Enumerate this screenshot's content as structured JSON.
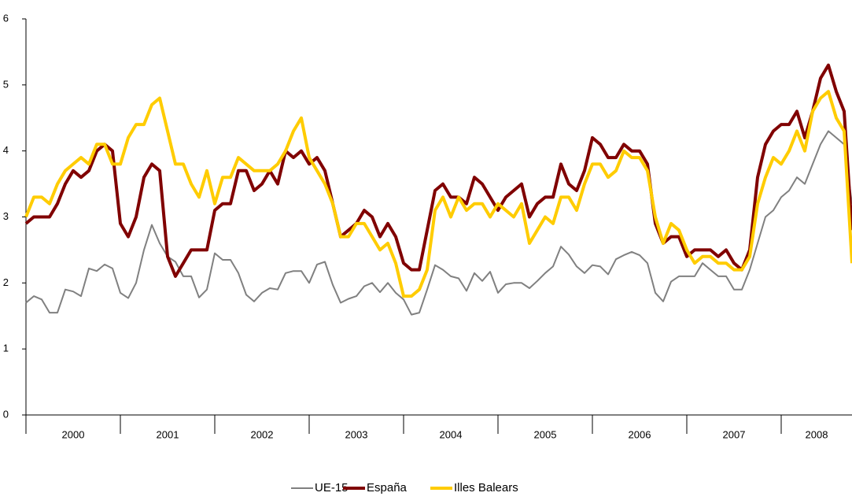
{
  "chart_data": {
    "type": "line",
    "years": [
      "2000",
      "2001",
      "2002",
      "2003",
      "2004",
      "2005",
      "2006",
      "2007",
      "2008"
    ],
    "ylim": [
      0,
      6
    ],
    "yticks": [
      0,
      1,
      2,
      3,
      4,
      5,
      6
    ],
    "series": [
      {
        "name": "UE-15",
        "color": "#808080",
        "values": [
          1.7,
          1.8,
          1.75,
          1.55,
          1.55,
          1.9,
          1.87,
          1.8,
          2.22,
          2.18,
          2.28,
          2.22,
          1.85,
          1.77,
          2.0,
          2.5,
          2.88,
          2.6,
          2.4,
          2.32,
          2.1,
          2.1,
          1.78,
          1.9,
          2.45,
          2.35,
          2.35,
          2.15,
          1.82,
          1.72,
          1.85,
          1.92,
          1.9,
          2.15,
          2.18,
          2.18,
          2.0,
          2.28,
          2.32,
          1.97,
          1.7,
          1.76,
          1.8,
          1.95,
          2.0,
          1.86,
          2.0,
          1.85,
          1.75,
          1.52,
          1.55,
          1.9,
          2.27,
          2.2,
          2.1,
          2.07,
          1.88,
          2.15,
          2.03,
          2.17,
          1.85,
          1.98,
          2.0,
          2.0,
          1.92,
          2.03,
          2.15,
          2.25,
          2.55,
          2.43,
          2.25,
          2.15,
          2.27,
          2.25,
          2.13,
          2.36,
          2.42,
          2.47,
          2.42,
          2.3,
          1.85,
          1.72,
          2.02,
          2.1,
          2.1,
          2.1,
          2.3,
          2.2,
          2.1,
          2.1,
          1.9,
          1.9,
          2.2,
          2.6,
          3.0,
          3.1,
          3.3,
          3.4,
          3.6,
          3.5,
          3.8,
          4.1,
          4.3,
          4.2,
          4.1,
          3.2
        ]
      },
      {
        "name": "España",
        "color": "#800000",
        "values": [
          2.9,
          3.0,
          3.0,
          3.0,
          3.2,
          3.5,
          3.7,
          3.6,
          3.7,
          4.0,
          4.1,
          4.0,
          2.9,
          2.7,
          3.0,
          3.6,
          3.8,
          3.7,
          2.4,
          2.1,
          2.3,
          2.5,
          2.5,
          2.5,
          3.1,
          3.2,
          3.2,
          3.7,
          3.7,
          3.4,
          3.5,
          3.7,
          3.5,
          4.0,
          3.9,
          4.0,
          3.8,
          3.9,
          3.7,
          3.2,
          2.7,
          2.8,
          2.9,
          3.1,
          3.0,
          2.7,
          2.9,
          2.7,
          2.3,
          2.2,
          2.2,
          2.8,
          3.4,
          3.5,
          3.3,
          3.3,
          3.2,
          3.6,
          3.5,
          3.3,
          3.1,
          3.3,
          3.4,
          3.5,
          3.0,
          3.2,
          3.3,
          3.3,
          3.8,
          3.5,
          3.4,
          3.7,
          4.2,
          4.1,
          3.9,
          3.9,
          4.1,
          4.0,
          4.0,
          3.8,
          2.9,
          2.6,
          2.7,
          2.7,
          2.4,
          2.5,
          2.5,
          2.5,
          2.4,
          2.5,
          2.3,
          2.2,
          2.5,
          3.6,
          4.1,
          4.3,
          4.4,
          4.4,
          4.6,
          4.2,
          4.6,
          5.1,
          5.3,
          4.9,
          4.6,
          2.8
        ]
      },
      {
        "name": "Illes Balears",
        "color": "#ffcc00",
        "values": [
          3.0,
          3.3,
          3.3,
          3.2,
          3.5,
          3.7,
          3.8,
          3.9,
          3.8,
          4.1,
          4.1,
          3.8,
          3.8,
          4.2,
          4.4,
          4.4,
          4.7,
          4.8,
          4.3,
          3.8,
          3.8,
          3.5,
          3.3,
          3.7,
          3.2,
          3.6,
          3.6,
          3.9,
          3.8,
          3.7,
          3.7,
          3.7,
          3.8,
          4.0,
          4.3,
          4.5,
          3.9,
          3.7,
          3.5,
          3.2,
          2.7,
          2.7,
          2.9,
          2.9,
          2.7,
          2.5,
          2.6,
          2.3,
          1.8,
          1.8,
          1.9,
          2.2,
          3.1,
          3.3,
          3.0,
          3.3,
          3.1,
          3.2,
          3.2,
          3.0,
          3.2,
          3.1,
          3.0,
          3.2,
          2.6,
          2.8,
          3.0,
          2.9,
          3.3,
          3.3,
          3.1,
          3.5,
          3.8,
          3.8,
          3.6,
          3.7,
          4.0,
          3.9,
          3.9,
          3.7,
          3.0,
          2.6,
          2.9,
          2.8,
          2.5,
          2.3,
          2.4,
          2.4,
          2.3,
          2.3,
          2.2,
          2.2,
          2.4,
          3.2,
          3.6,
          3.9,
          3.8,
          4.0,
          4.3,
          4.0,
          4.6,
          4.8,
          4.9,
          4.5,
          4.3,
          2.3
        ]
      }
    ]
  }
}
